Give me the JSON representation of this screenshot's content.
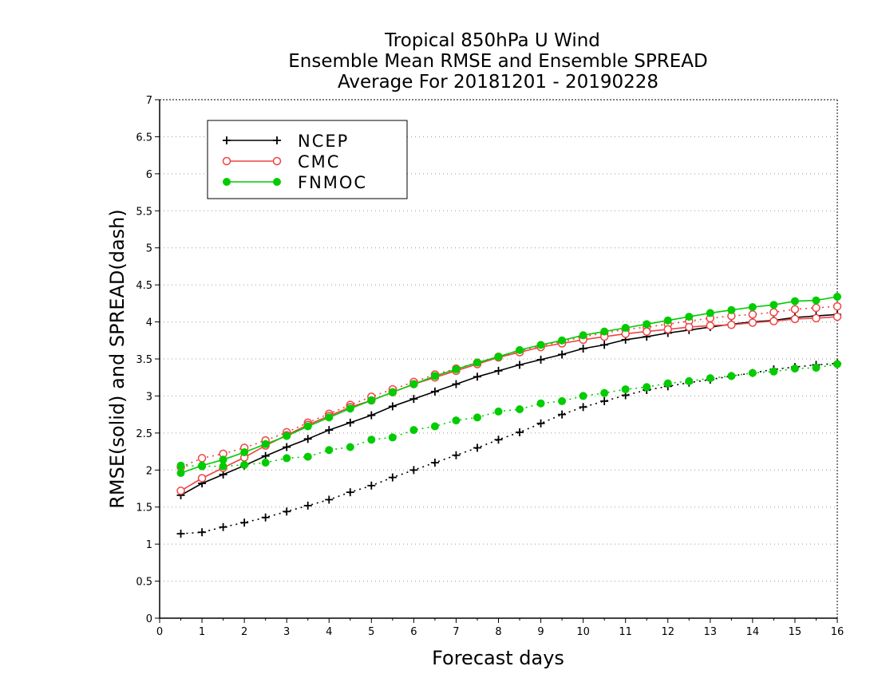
{
  "chart_data": {
    "type": "line",
    "title_lines": [
      "Tropical 850hPa U Wind",
      "Ensemble Mean RMSE and Ensemble SPREAD",
      "Average For 20181201 - 20190228"
    ],
    "xlabel": "Forecast days",
    "ylabel": "RMSE(solid) and SPREAD(dash)",
    "xlim": [
      0,
      16
    ],
    "ylim": [
      0,
      7
    ],
    "xticks": [
      0,
      1,
      2,
      3,
      4,
      5,
      6,
      7,
      8,
      9,
      10,
      11,
      12,
      13,
      14,
      15,
      16
    ],
    "yticks": [
      0,
      0.5,
      1,
      1.5,
      2,
      2.5,
      3,
      3.5,
      4,
      4.5,
      5,
      5.5,
      6,
      6.5,
      7
    ],
    "grid": "horizontal dotted",
    "legend_position": "top-left",
    "x": [
      0.5,
      1,
      1.5,
      2,
      2.5,
      3,
      3.5,
      4,
      4.5,
      5,
      5.5,
      6,
      6.5,
      7,
      7.5,
      8,
      8.5,
      9,
      9.5,
      10,
      10.5,
      11,
      11.5,
      12,
      12.5,
      13,
      13.5,
      14,
      14.5,
      15,
      15.5,
      16
    ],
    "series": [
      {
        "name": "NCEP",
        "color": "#000000",
        "marker": "plus",
        "rmse": [
          1.66,
          1.82,
          1.94,
          2.06,
          2.19,
          2.31,
          2.42,
          2.54,
          2.64,
          2.74,
          2.86,
          2.96,
          3.06,
          3.16,
          3.26,
          3.34,
          3.42,
          3.49,
          3.56,
          3.64,
          3.69,
          3.76,
          3.8,
          3.85,
          3.89,
          3.93,
          3.97,
          4.0,
          4.02,
          4.06,
          4.08,
          4.1
        ],
        "spread": [
          1.14,
          1.16,
          1.23,
          1.29,
          1.36,
          1.44,
          1.52,
          1.6,
          1.7,
          1.79,
          1.9,
          2.0,
          2.1,
          2.2,
          2.3,
          2.41,
          2.51,
          2.63,
          2.75,
          2.85,
          2.93,
          3.01,
          3.08,
          3.13,
          3.18,
          3.22,
          3.27,
          3.31,
          3.36,
          3.39,
          3.42,
          3.44
        ]
      },
      {
        "name": "CMC",
        "color": "#ee4444",
        "marker": "open-circle",
        "rmse": [
          1.72,
          1.89,
          2.03,
          2.17,
          2.33,
          2.47,
          2.61,
          2.73,
          2.85,
          2.94,
          3.05,
          3.16,
          3.25,
          3.34,
          3.43,
          3.52,
          3.59,
          3.66,
          3.71,
          3.76,
          3.8,
          3.84,
          3.87,
          3.9,
          3.93,
          3.95,
          3.96,
          3.99,
          4.01,
          4.04,
          4.05,
          4.07
        ],
        "spread": [
          2.04,
          2.16,
          2.22,
          2.3,
          2.4,
          2.51,
          2.64,
          2.76,
          2.88,
          2.99,
          3.09,
          3.19,
          3.29,
          3.37,
          3.45,
          3.53,
          3.61,
          3.68,
          3.73,
          3.8,
          3.85,
          3.9,
          3.93,
          3.97,
          4.01,
          4.05,
          4.08,
          4.1,
          4.13,
          4.17,
          4.19,
          4.21
        ]
      },
      {
        "name": "FNMOC",
        "color": "#00cc00",
        "marker": "filled-circle",
        "rmse": [
          1.96,
          2.06,
          2.14,
          2.24,
          2.35,
          2.46,
          2.59,
          2.71,
          2.83,
          2.94,
          3.05,
          3.16,
          3.27,
          3.36,
          3.45,
          3.53,
          3.62,
          3.69,
          3.75,
          3.82,
          3.87,
          3.92,
          3.97,
          4.02,
          4.07,
          4.12,
          4.16,
          4.2,
          4.23,
          4.28,
          4.29,
          4.34
        ],
        "spread": [
          2.06,
          2.05,
          2.05,
          2.07,
          2.1,
          2.16,
          2.18,
          2.27,
          2.31,
          2.41,
          2.44,
          2.54,
          2.59,
          2.67,
          2.71,
          2.79,
          2.82,
          2.9,
          2.93,
          3.0,
          3.04,
          3.09,
          3.12,
          3.17,
          3.2,
          3.24,
          3.27,
          3.31,
          3.33,
          3.37,
          3.38,
          3.43
        ]
      }
    ]
  }
}
